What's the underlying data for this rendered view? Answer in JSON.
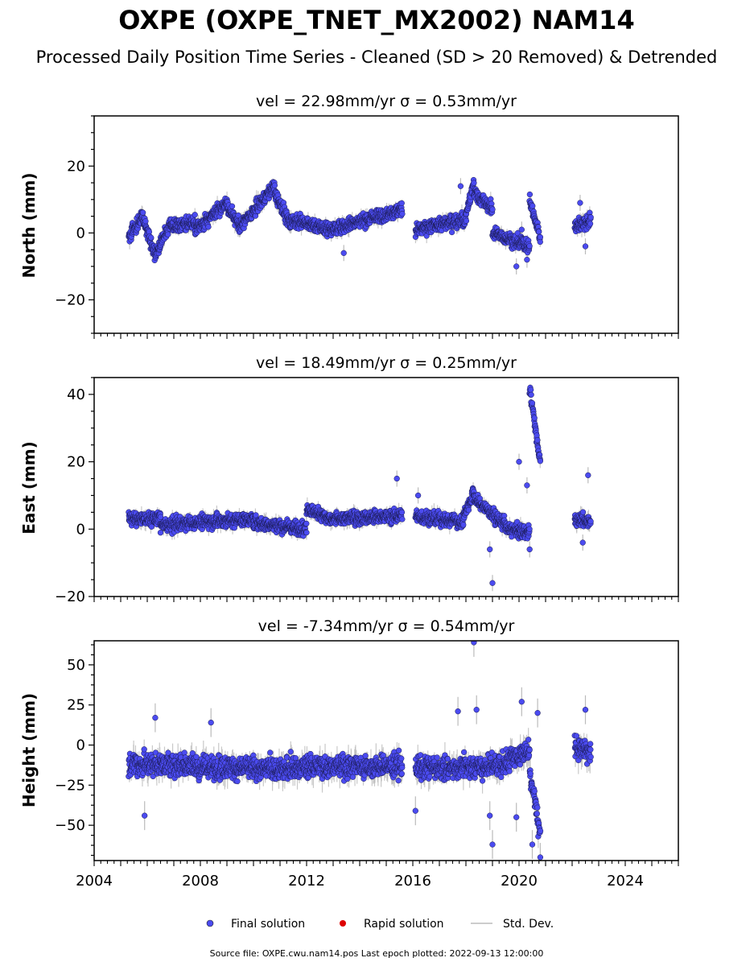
{
  "title": "OXPE (OXPE_TNET_MX2002) NAM14",
  "subtitle": "Processed Daily Position Time Series - Cleaned (SD > 20 Removed) & Detrended",
  "footer": "Source file: OXPE.cwu.nam14.pos  Last epoch plotted: 2022-09-13 12:00:00",
  "legend": [
    "Final solution",
    "Rapid solution",
    "Std. Dev."
  ],
  "colors": {
    "final": "#4b4bf0",
    "rapid": "#dd0000",
    "stddev": "#bbbbbb"
  },
  "chart_data": [
    {
      "type": "scatter",
      "title": "vel = 22.98mm/yr   σ = 0.53mm/yr",
      "ylabel": "North (mm)",
      "xlim": [
        2004,
        2026
      ],
      "ylim": [
        -30,
        35
      ],
      "yticks": [
        -20,
        0,
        20
      ],
      "xticks": [],
      "series": [
        {
          "legend": "Final solution",
          "segments": [
            {
              "t0": 2005.3,
              "t1": 2005.8,
              "a": -1,
              "b": 5
            },
            {
              "t0": 2005.8,
              "t1": 2006.3,
              "a": 5,
              "b": -7
            },
            {
              "t0": 2006.3,
              "t1": 2006.9,
              "a": -6,
              "b": 3
            },
            {
              "t0": 2006.9,
              "t1": 2007.8,
              "a": 2,
              "b": 3
            },
            {
              "t0": 2007.8,
              "t1": 2009.0,
              "a": 1,
              "b": 9
            },
            {
              "t0": 2009.0,
              "t1": 2009.5,
              "a": 8,
              "b": 2
            },
            {
              "t0": 2009.5,
              "t1": 2010.8,
              "a": 2,
              "b": 14
            },
            {
              "t0": 2010.8,
              "t1": 2011.4,
              "a": 12,
              "b": 2
            },
            {
              "t0": 2011.4,
              "t1": 2012.9,
              "a": 4,
              "b": 1
            },
            {
              "t0": 2012.9,
              "t1": 2015.6,
              "a": 1,
              "b": 7
            },
            {
              "t0": 2016.1,
              "t1": 2017.9,
              "a": 1,
              "b": 4
            },
            {
              "t0": 2017.9,
              "t1": 2018.3,
              "a": 2,
              "b": 15
            },
            {
              "t0": 2018.3,
              "t1": 2019.0,
              "a": 12,
              "b": 7
            },
            {
              "t0": 2019.0,
              "t1": 2020.4,
              "a": 0,
              "b": -4
            },
            {
              "t0": 2020.4,
              "t1": 2020.8,
              "a": 10,
              "b": -2
            },
            {
              "t0": 2022.1,
              "t1": 2022.7,
              "a": 2,
              "b": 4
            }
          ],
          "outliers": [
            [
              2013.4,
              -6
            ],
            [
              2017.8,
              14
            ],
            [
              2020.1,
              1
            ],
            [
              2022.3,
              9
            ],
            [
              2022.5,
              -4
            ],
            [
              2019.9,
              -10
            ],
            [
              2020.3,
              -8
            ]
          ]
        }
      ]
    },
    {
      "type": "scatter",
      "title": "vel = 18.49mm/yr   σ = 0.25mm/yr",
      "ylabel": "East (mm)",
      "xlim": [
        2004,
        2026
      ],
      "ylim": [
        -20,
        45
      ],
      "yticks": [
        -20,
        0,
        20,
        40
      ],
      "xticks": [],
      "series": [
        {
          "legend": "Final solution",
          "segments": [
            {
              "t0": 2005.3,
              "t1": 2006.5,
              "a": 3,
              "b": 3
            },
            {
              "t0": 2006.5,
              "t1": 2008.0,
              "a": 1,
              "b": 2
            },
            {
              "t0": 2008.0,
              "t1": 2010.0,
              "a": 2,
              "b": 3
            },
            {
              "t0": 2010.0,
              "t1": 2012.0,
              "a": 2,
              "b": 0
            },
            {
              "t0": 2012.0,
              "t1": 2012.7,
              "a": 6,
              "b": 4
            },
            {
              "t0": 2012.7,
              "t1": 2015.6,
              "a": 3,
              "b": 4
            },
            {
              "t0": 2016.1,
              "t1": 2017.9,
              "a": 4,
              "b": 2
            },
            {
              "t0": 2017.9,
              "t1": 2018.3,
              "a": 4,
              "b": 11
            },
            {
              "t0": 2018.3,
              "t1": 2019.5,
              "a": 9,
              "b": 1
            },
            {
              "t0": 2019.5,
              "t1": 2020.4,
              "a": 0,
              "b": -1
            },
            {
              "t0": 2020.4,
              "t1": 2020.8,
              "a": 42,
              "b": 20
            },
            {
              "t0": 2022.1,
              "t1": 2022.7,
              "a": 3,
              "b": 2
            }
          ],
          "outliers": [
            [
              2015.4,
              15
            ],
            [
              2016.2,
              10
            ],
            [
              2018.9,
              -6
            ],
            [
              2019.0,
              -16
            ],
            [
              2020.0,
              20
            ],
            [
              2020.3,
              13
            ],
            [
              2020.4,
              -6
            ],
            [
              2022.6,
              16
            ],
            [
              2022.4,
              -4
            ]
          ]
        }
      ]
    },
    {
      "type": "scatter",
      "title": "vel = -7.34mm/yr   σ = 0.54mm/yr",
      "ylabel": "Height (mm)",
      "xlim": [
        2004,
        2026
      ],
      "ylim": [
        -72,
        65
      ],
      "yticks": [
        -50,
        -25,
        0,
        25,
        50
      ],
      "xticks": [
        2004,
        2008,
        2012,
        2016,
        2020,
        2024
      ],
      "series": [
        {
          "legend": "Final solution",
          "segments": [
            {
              "t0": 2005.3,
              "t1": 2007.8,
              "a": -12,
              "b": -12
            },
            {
              "t0": 2007.8,
              "t1": 2010.0,
              "a": -14,
              "b": -14
            },
            {
              "t0": 2010.0,
              "t1": 2012.9,
              "a": -15,
              "b": -13
            },
            {
              "t0": 2012.9,
              "t1": 2015.6,
              "a": -13,
              "b": -13
            },
            {
              "t0": 2016.1,
              "t1": 2019.5,
              "a": -15,
              "b": -12
            },
            {
              "t0": 2019.5,
              "t1": 2020.4,
              "a": -10,
              "b": -3
            },
            {
              "t0": 2020.4,
              "t1": 2020.8,
              "a": -15,
              "b": -55
            },
            {
              "t0": 2022.1,
              "t1": 2022.7,
              "a": 0,
              "b": -5
            }
          ],
          "outliers": [
            [
              2005.9,
              -44
            ],
            [
              2006.3,
              17
            ],
            [
              2008.4,
              14
            ],
            [
              2016.1,
              -41
            ],
            [
              2018.3,
              64
            ],
            [
              2018.4,
              22
            ],
            [
              2017.7,
              21
            ],
            [
              2018.9,
              -44
            ],
            [
              2019.0,
              -62
            ],
            [
              2019.9,
              -45
            ],
            [
              2020.1,
              27
            ],
            [
              2020.5,
              -62
            ],
            [
              2020.8,
              -70
            ],
            [
              2020.7,
              20
            ],
            [
              2022.5,
              22
            ]
          ]
        }
      ]
    }
  ]
}
